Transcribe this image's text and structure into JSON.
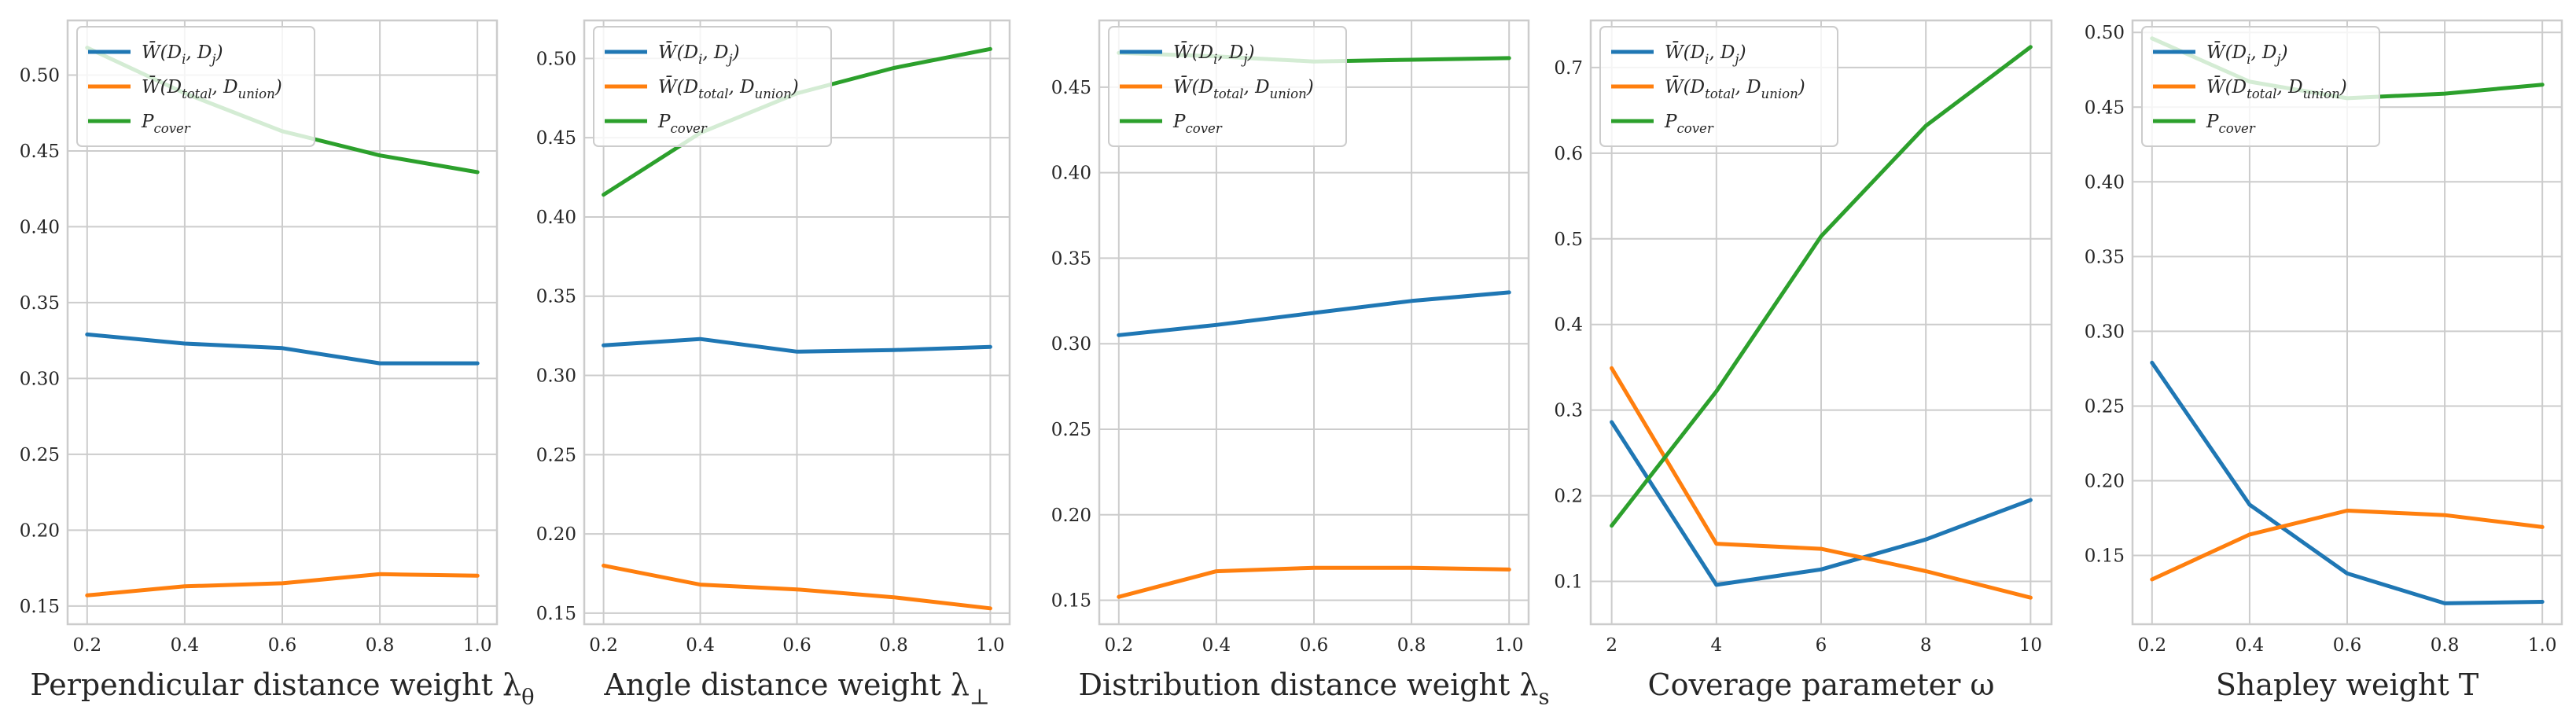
{
  "colors": {
    "blue": "#1f77b4",
    "orange": "#ff7f0e",
    "green": "#2ca02c",
    "grid": "#cccccc",
    "text": "#262626"
  },
  "legend_labels": [
    "W̄(D_i, D_j)",
    "W̄(D_total, D_union)",
    "P_cover"
  ],
  "chart_data": [
    {
      "type": "line",
      "title": "",
      "xlabel": "Perpendicular distance weight λ_θ",
      "ylabel": "",
      "legend_position": "top-left",
      "x": [
        0.2,
        0.4,
        0.6,
        0.8,
        1.0
      ],
      "xticks": [
        "0.2",
        "0.4",
        "0.6",
        "0.8",
        "1.0"
      ],
      "xlim": [
        0.16,
        1.04
      ],
      "ylim": [
        0.138,
        0.536
      ],
      "yticks": [
        "0.15",
        "0.20",
        "0.25",
        "0.30",
        "0.35",
        "0.40",
        "0.45",
        "0.50"
      ],
      "series": [
        {
          "name": "W̄(D_i, D_j)",
          "color": "#1f77b4",
          "values": [
            0.329,
            0.323,
            0.32,
            0.31,
            0.31
          ]
        },
        {
          "name": "W̄(D_total, D_union)",
          "color": "#ff7f0e",
          "values": [
            0.157,
            0.163,
            0.165,
            0.171,
            0.17
          ]
        },
        {
          "name": "P_cover",
          "color": "#2ca02c",
          "values": [
            0.518,
            0.488,
            0.463,
            0.447,
            0.436
          ]
        }
      ]
    },
    {
      "type": "line",
      "title": "",
      "xlabel": "Angle distance weight λ_⊥",
      "ylabel": "",
      "legend_position": "top-left",
      "x": [
        0.2,
        0.4,
        0.6,
        0.8,
        1.0
      ],
      "xticks": [
        "0.2",
        "0.4",
        "0.6",
        "0.8",
        "1.0"
      ],
      "xlim": [
        0.16,
        1.04
      ],
      "ylim": [
        0.143,
        0.524
      ],
      "yticks": [
        "0.15",
        "0.20",
        "0.25",
        "0.30",
        "0.35",
        "0.40",
        "0.45",
        "0.50"
      ],
      "series": [
        {
          "name": "W̄(D_i, D_j)",
          "color": "#1f77b4",
          "values": [
            0.319,
            0.323,
            0.315,
            0.316,
            0.318
          ]
        },
        {
          "name": "W̄(D_total, D_union)",
          "color": "#ff7f0e",
          "values": [
            0.18,
            0.168,
            0.165,
            0.16,
            0.153
          ]
        },
        {
          "name": "P_cover",
          "color": "#2ca02c",
          "values": [
            0.414,
            0.453,
            0.478,
            0.494,
            0.506
          ]
        }
      ]
    },
    {
      "type": "line",
      "title": "",
      "xlabel": "Distribution distance weight λ_s",
      "ylabel": "",
      "legend_position": "top-left",
      "x": [
        0.2,
        0.4,
        0.6,
        0.8,
        1.0
      ],
      "xticks": [
        "0.2",
        "0.4",
        "0.6",
        "0.8",
        "1.0"
      ],
      "xlim": [
        0.16,
        1.04
      ],
      "ylim": [
        0.136,
        0.489
      ],
      "yticks": [
        "0.15",
        "0.20",
        "0.25",
        "0.30",
        "0.35",
        "0.40",
        "0.45"
      ],
      "series": [
        {
          "name": "W̄(D_i, D_j)",
          "color": "#1f77b4",
          "values": [
            0.305,
            0.311,
            0.318,
            0.325,
            0.33
          ]
        },
        {
          "name": "W̄(D_total, D_union)",
          "color": "#ff7f0e",
          "values": [
            0.152,
            0.167,
            0.169,
            0.169,
            0.168
          ]
        },
        {
          "name": "P_cover",
          "color": "#2ca02c",
          "values": [
            0.47,
            0.468,
            0.465,
            0.466,
            0.467
          ]
        }
      ]
    },
    {
      "type": "line",
      "title": "",
      "xlabel": "Coverage parameter ω",
      "ylabel": "",
      "legend_position": "top-left",
      "x": [
        2,
        4,
        6,
        8,
        10
      ],
      "xticks": [
        "2",
        "4",
        "6",
        "8",
        "10"
      ],
      "xlim": [
        1.6,
        10.4
      ],
      "ylim": [
        0.05,
        0.755
      ],
      "yticks": [
        "0.1",
        "0.2",
        "0.3",
        "0.4",
        "0.5",
        "0.6",
        "0.7"
      ],
      "series": [
        {
          "name": "W̄(D_i, D_j)",
          "color": "#1f77b4",
          "values": [
            0.286,
            0.096,
            0.114,
            0.149,
            0.195
          ]
        },
        {
          "name": "W̄(D_total, D_union)",
          "color": "#ff7f0e",
          "values": [
            0.349,
            0.144,
            0.138,
            0.112,
            0.081
          ]
        },
        {
          "name": "P_cover",
          "color": "#2ca02c",
          "values": [
            0.165,
            0.322,
            0.503,
            0.632,
            0.724
          ]
        }
      ]
    },
    {
      "type": "line",
      "title": "",
      "xlabel": "Shapley weight T",
      "ylabel": "",
      "legend_position": "top-left",
      "x": [
        0.2,
        0.4,
        0.6,
        0.8,
        1.0
      ],
      "xticks": [
        "0.2",
        "0.4",
        "0.6",
        "0.8",
        "1.0"
      ],
      "xlim": [
        0.16,
        1.04
      ],
      "ylim": [
        0.104,
        0.508
      ],
      "yticks": [
        "0.15",
        "0.20",
        "0.25",
        "0.30",
        "0.35",
        "0.40",
        "0.45",
        "0.50"
      ],
      "series": [
        {
          "name": "W̄(D_i, D_j)",
          "color": "#1f77b4",
          "values": [
            0.279,
            0.184,
            0.138,
            0.118,
            0.119
          ]
        },
        {
          "name": "W̄(D_total, D_union)",
          "color": "#ff7f0e",
          "values": [
            0.134,
            0.164,
            0.18,
            0.177,
            0.169
          ]
        },
        {
          "name": "P_cover",
          "color": "#2ca02c",
          "values": [
            0.496,
            0.467,
            0.456,
            0.459,
            0.465
          ]
        }
      ]
    }
  ]
}
